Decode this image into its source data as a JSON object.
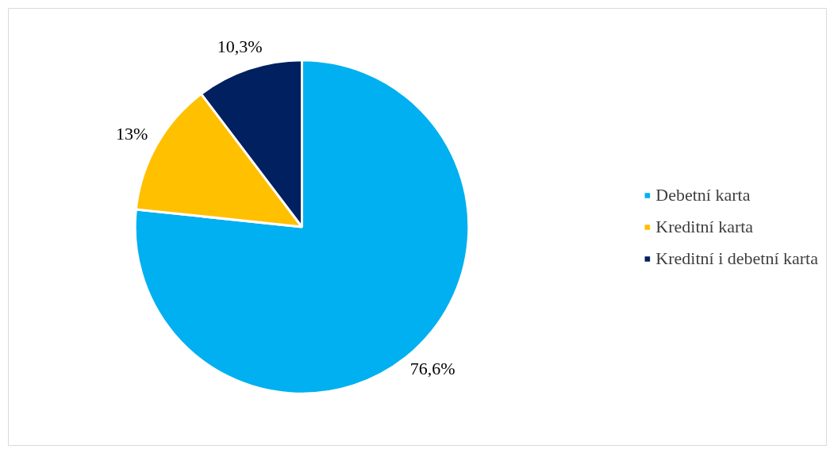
{
  "chart_data": {
    "type": "pie",
    "categories": [
      "Debetní karta",
      "Kreditní karta",
      "Kreditní i debetní karta"
    ],
    "values": [
      76.6,
      13,
      10.3
    ],
    "colors": [
      "#00b0f0",
      "#ffc000",
      "#002060"
    ],
    "value_labels": [
      "76,6%",
      "13%",
      "10,3%"
    ],
    "legend": "right"
  }
}
